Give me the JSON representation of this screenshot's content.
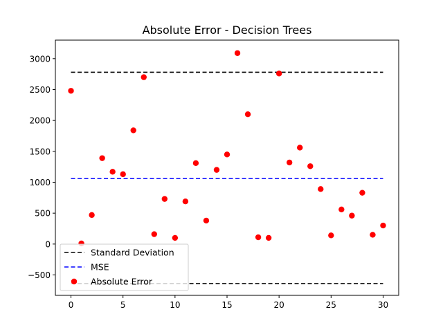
{
  "chart_data": {
    "type": "scatter",
    "title": "Absolute Error - Decision Trees",
    "xlabel": "",
    "ylabel": "",
    "xlim": [
      -1.5,
      31.5
    ],
    "ylim": [
      -830,
      3300
    ],
    "xticks": [
      0,
      5,
      10,
      15,
      20,
      25,
      30
    ],
    "yticks": [
      -500,
      0,
      500,
      1000,
      1500,
      2000,
      2500,
      3000
    ],
    "grid": false,
    "legend_position": "lower-left",
    "series": [
      {
        "name": "Standard Deviation",
        "kind": "line",
        "style": "dashed",
        "color": "#000000",
        "x": [
          0,
          30
        ],
        "y": [
          2780,
          2780
        ]
      },
      {
        "name": "Standard Deviation",
        "kind": "line",
        "style": "dashed",
        "color": "#000000",
        "legend": false,
        "x": [
          0,
          30
        ],
        "y": [
          -640,
          -640
        ]
      },
      {
        "name": "MSE",
        "kind": "line",
        "style": "dashed",
        "color": "#0000ff",
        "x": [
          0,
          30
        ],
        "y": [
          1060,
          1060
        ]
      },
      {
        "name": "Absolute Error",
        "kind": "scatter",
        "color": "#ff0000",
        "x": [
          0,
          1,
          2,
          3,
          4,
          5,
          6,
          7,
          8,
          9,
          10,
          11,
          12,
          13,
          14,
          15,
          16,
          17,
          18,
          19,
          20,
          21,
          22,
          23,
          24,
          25,
          26,
          27,
          28,
          29,
          30
        ],
        "y": [
          2480,
          10,
          470,
          1390,
          1170,
          1130,
          1840,
          2700,
          160,
          730,
          100,
          690,
          1310,
          380,
          1200,
          1450,
          3090,
          2100,
          110,
          100,
          2760,
          1320,
          1560,
          1260,
          890,
          140,
          560,
          460,
          830,
          150,
          300
        ]
      }
    ],
    "legend": [
      "Standard Deviation",
      "MSE",
      "Absolute Error"
    ]
  }
}
